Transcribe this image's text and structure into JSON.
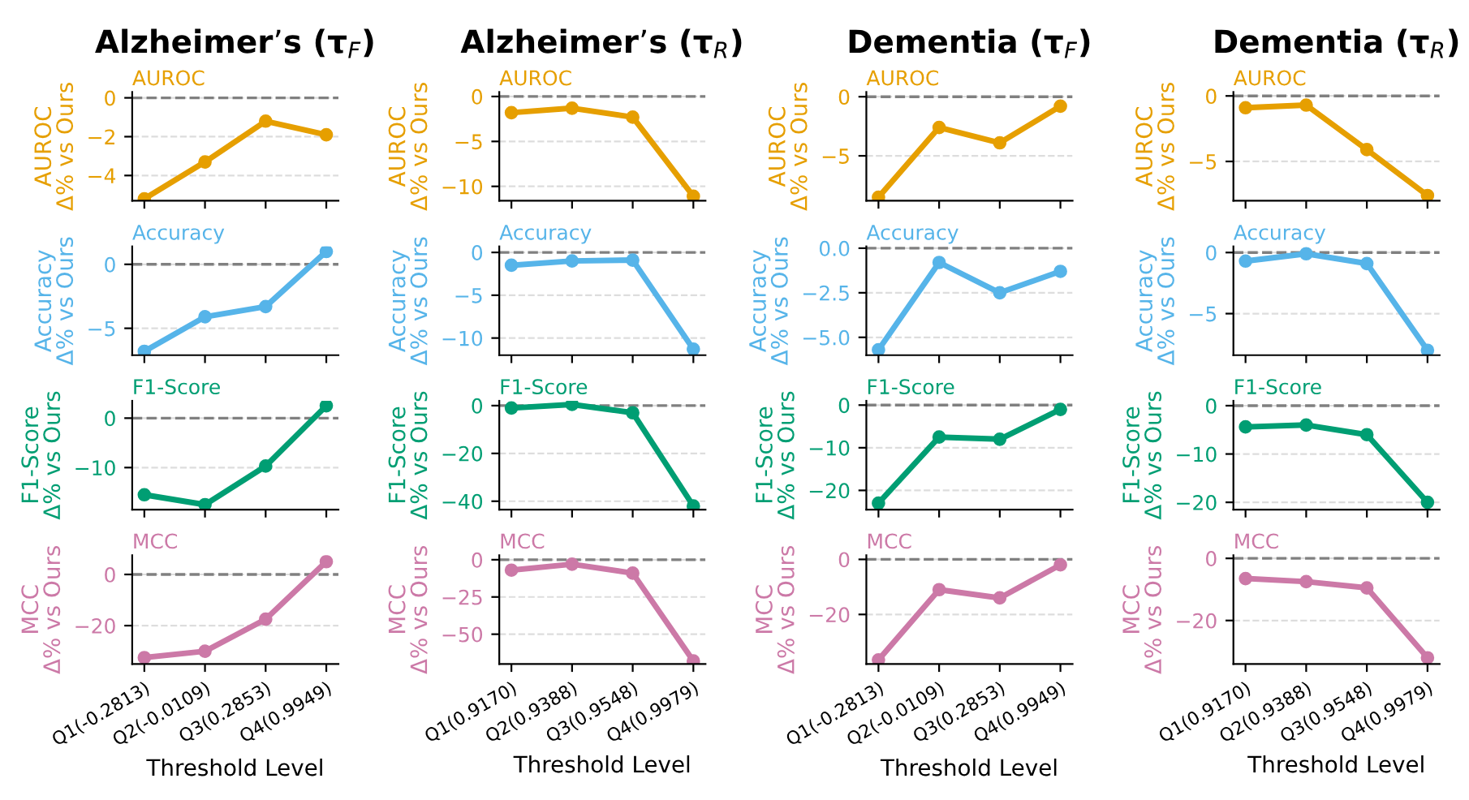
{
  "chart_data": [
    {
      "type": "line",
      "title": "Alzheimer’s (τ$_{F}$)",
      "subtitle": "AUROC",
      "ylabel": "AUROC\nΔ% vs Ours",
      "categories": [
        null,
        null,
        null,
        null
      ],
      "series": [
        {
          "color": "#e69f00",
          "values": [
            -5.2,
            -3.3,
            -1.2,
            -1.9
          ]
        }
      ],
      "ylim": [
        -5.3,
        0.3
      ],
      "yticks": [
        {
          "value": -4,
          "label": "−4"
        },
        {
          "value": -2,
          "label": "−2"
        },
        0
      ],
      "ref_lines": [
        {
          "axis": "y",
          "value": 0,
          "color": "#808080",
          "line_style": "dashed"
        }
      ],
      "grid": "y",
      "marker": "circle",
      "line_style": "solid"
    },
    {
      "type": "line",
      "title": "Alzheimer’s (τ$_{R}$)",
      "subtitle": "AUROC",
      "ylabel": "AUROC\nΔ% vs Ours",
      "categories": [
        null,
        null,
        null,
        null
      ],
      "series": [
        {
          "color": "#e69f00",
          "values": [
            -1.8,
            -1.3,
            -2.3,
            -11.1
          ]
        }
      ],
      "ylim": [
        -11.6,
        0.5
      ],
      "yticks": [
        {
          "value": -10,
          "label": "−10"
        },
        {
          "value": -5,
          "label": "−5"
        },
        0
      ],
      "ref_lines": [
        {
          "axis": "y",
          "value": 0,
          "color": "#808080",
          "line_style": "dashed"
        }
      ],
      "grid": "y",
      "marker": "circle",
      "line_style": "solid"
    },
    {
      "type": "line",
      "title": "Dementia (τ$_{F}$)",
      "subtitle": "AUROC",
      "ylabel": "AUROC\nΔ% vs Ours",
      "categories": [
        null,
        null,
        null,
        null
      ],
      "series": [
        {
          "color": "#e69f00",
          "values": [
            -8.5,
            -2.6,
            -3.9,
            -0.8
          ]
        }
      ],
      "ylim": [
        -8.8,
        0.4
      ],
      "yticks": [
        {
          "value": -5,
          "label": "−5"
        },
        0
      ],
      "ref_lines": [
        {
          "axis": "y",
          "value": 0,
          "color": "#808080",
          "line_style": "dashed"
        }
      ],
      "grid": "y",
      "marker": "circle",
      "line_style": "solid"
    },
    {
      "type": "line",
      "title": "Dementia (τ$_{R}$)",
      "subtitle": "AUROC",
      "ylabel": "AUROC\nΔ% vs Ours",
      "categories": [
        null,
        null,
        null,
        null
      ],
      "series": [
        {
          "color": "#e69f00",
          "values": [
            -0.9,
            -0.7,
            -4.1,
            -7.6
          ]
        }
      ],
      "ylim": [
        -8.0,
        0.3
      ],
      "yticks": [
        {
          "value": -5,
          "label": "−5"
        },
        0
      ],
      "ref_lines": [
        {
          "axis": "y",
          "value": 0,
          "color": "#808080",
          "line_style": "dashed"
        }
      ],
      "grid": "y",
      "marker": "circle",
      "line_style": "solid"
    },
    {
      "type": "line",
      "subtitle": "Accuracy",
      "ylabel": "Accuracy\nΔ% vs Ours",
      "categories": [
        null,
        null,
        null,
        null
      ],
      "series": [
        {
          "color": "#56b4e9",
          "values": [
            -6.8,
            -4.1,
            -3.3,
            1.0
          ]
        }
      ],
      "ylim": [
        -7.1,
        1.4
      ],
      "yticks": [
        {
          "value": -5,
          "label": "−5"
        },
        0
      ],
      "ref_lines": [
        {
          "axis": "y",
          "value": 0,
          "color": "#808080",
          "line_style": "dashed"
        }
      ],
      "grid": "y",
      "marker": "circle",
      "line_style": "solid"
    },
    {
      "type": "line",
      "subtitle": "Accuracy",
      "ylabel": "Accuracy\nΔ% vs Ours",
      "categories": [
        null,
        null,
        null,
        null
      ],
      "series": [
        {
          "color": "#56b4e9",
          "values": [
            -1.5,
            -1.0,
            -0.9,
            -11.3
          ]
        }
      ],
      "ylim": [
        -12.0,
        0.7
      ],
      "yticks": [
        {
          "value": -10,
          "label": "−10"
        },
        {
          "value": -5,
          "label": "−5"
        },
        0
      ],
      "ref_lines": [
        {
          "axis": "y",
          "value": 0,
          "color": "#808080",
          "line_style": "dashed"
        }
      ],
      "grid": "y",
      "marker": "circle",
      "line_style": "solid"
    },
    {
      "type": "line",
      "subtitle": "Accuracy",
      "ylabel": "Accuracy\nΔ% vs Ours",
      "categories": [
        null,
        null,
        null,
        null
      ],
      "series": [
        {
          "color": "#56b4e9",
          "values": [
            -5.7,
            -0.8,
            -2.5,
            -1.3
          ]
        }
      ],
      "ylim": [
        -6.0,
        0.1
      ],
      "yticks": [
        {
          "value": -5,
          "label": "−5.0"
        },
        {
          "value": -2.5,
          "label": "−2.5"
        },
        {
          "value": 0,
          "label": "0.0"
        }
      ],
      "ref_lines": [
        {
          "axis": "y",
          "value": 0,
          "color": "#808080",
          "line_style": "dashed"
        }
      ],
      "grid": "y",
      "marker": "circle",
      "line_style": "solid"
    },
    {
      "type": "line",
      "subtitle": "Accuracy",
      "ylabel": "Accuracy\nΔ% vs Ours",
      "categories": [
        null,
        null,
        null,
        null
      ],
      "series": [
        {
          "color": "#56b4e9",
          "values": [
            -0.7,
            -0.1,
            -0.9,
            -8.0
          ]
        }
      ],
      "ylim": [
        -8.4,
        0.5
      ],
      "yticks": [
        {
          "value": -5,
          "label": "−5"
        },
        0
      ],
      "ref_lines": [
        {
          "axis": "y",
          "value": 0,
          "color": "#808080",
          "line_style": "dashed"
        }
      ],
      "grid": "y",
      "marker": "circle",
      "line_style": "solid"
    },
    {
      "type": "line",
      "subtitle": "F1-Score",
      "ylabel": "F1-Score\nΔ% vs Ours",
      "categories": [
        null,
        null,
        null,
        null
      ],
      "series": [
        {
          "color": "#009e73",
          "values": [
            -15.5,
            -17.5,
            -9.7,
            2.5
          ]
        }
      ],
      "ylim": [
        -18.5,
        3.5
      ],
      "yticks": [
        {
          "value": -10,
          "label": "−10"
        },
        0
      ],
      "ref_lines": [
        {
          "axis": "y",
          "value": 0,
          "color": "#808080",
          "line_style": "dashed"
        }
      ],
      "grid": "y",
      "marker": "circle",
      "line_style": "solid"
    },
    {
      "type": "line",
      "subtitle": "F1-Score",
      "ylabel": "F1-Score\nΔ% vs Ours",
      "categories": [
        null,
        null,
        null,
        null
      ],
      "series": [
        {
          "color": "#009e73",
          "values": [
            -1.0,
            0.5,
            -3.0,
            -42.0
          ]
        }
      ],
      "ylim": [
        -43.5,
        2.0
      ],
      "yticks": [
        {
          "value": -40,
          "label": "−40"
        },
        {
          "value": -20,
          "label": "−20"
        },
        0
      ],
      "ref_lines": [
        {
          "axis": "y",
          "value": 0,
          "color": "#808080",
          "line_style": "dashed"
        }
      ],
      "grid": "y",
      "marker": "circle",
      "line_style": "solid"
    },
    {
      "type": "line",
      "subtitle": "F1-Score",
      "ylabel": "F1-Score\nΔ% vs Ours",
      "categories": [
        null,
        null,
        null,
        null
      ],
      "series": [
        {
          "color": "#009e73",
          "values": [
            -23.0,
            -7.5,
            -8.0,
            -1.0
          ]
        }
      ],
      "ylim": [
        -24.5,
        1.0
      ],
      "yticks": [
        {
          "value": -20,
          "label": "−20"
        },
        {
          "value": -10,
          "label": "−10"
        },
        0
      ],
      "ref_lines": [
        {
          "axis": "y",
          "value": 0,
          "color": "#808080",
          "line_style": "dashed"
        }
      ],
      "grid": "y",
      "marker": "circle",
      "line_style": "solid"
    },
    {
      "type": "line",
      "subtitle": "F1-Score",
      "ylabel": "F1-Score\nΔ% vs Ours",
      "categories": [
        null,
        null,
        null,
        null
      ],
      "series": [
        {
          "color": "#009e73",
          "values": [
            -4.4,
            -4.0,
            -6.0,
            -20.0
          ]
        }
      ],
      "ylim": [
        -21.5,
        1.0
      ],
      "yticks": [
        {
          "value": -20,
          "label": "−20"
        },
        {
          "value": -10,
          "label": "−10"
        },
        0
      ],
      "ref_lines": [
        {
          "axis": "y",
          "value": 0,
          "color": "#808080",
          "line_style": "dashed"
        }
      ],
      "grid": "y",
      "marker": "circle",
      "line_style": "solid"
    },
    {
      "type": "line",
      "subtitle": "MCC",
      "xlabel": "Threshold Level",
      "ylabel": "MCC\nΔ% vs Ours",
      "categories": [
        "Q1(-0.2813)",
        "Q2(-0.0109)",
        "Q3(0.2853)",
        "Q4(0.9949)"
      ],
      "series": [
        {
          "color": "#cc79a7",
          "values": [
            -32.5,
            -30.0,
            -17.5,
            5.0
          ]
        }
      ],
      "ylim": [
        -35.0,
        7.5
      ],
      "yticks": [
        {
          "value": -20,
          "label": "−20"
        },
        0
      ],
      "ref_lines": [
        {
          "axis": "y",
          "value": 0,
          "color": "#808080",
          "line_style": "dashed"
        }
      ],
      "grid": "y",
      "marker": "circle",
      "line_style": "solid"
    },
    {
      "type": "line",
      "subtitle": "MCC",
      "xlabel": "Threshold Level",
      "ylabel": "MCC\nΔ% vs Ours",
      "categories": [
        "Q1(0.9170)",
        "Q2(0.9388)",
        "Q3(0.9548)",
        "Q4(0.9979)"
      ],
      "series": [
        {
          "color": "#cc79a7",
          "values": [
            -7.0,
            -3.0,
            -9.0,
            -68.0
          ]
        }
      ],
      "ylim": [
        -70.0,
        3.0
      ],
      "yticks": [
        {
          "value": -50,
          "label": "−50"
        },
        {
          "value": -25,
          "label": "−25"
        },
        0
      ],
      "ref_lines": [
        {
          "axis": "y",
          "value": 0,
          "color": "#808080",
          "line_style": "dashed"
        }
      ],
      "grid": "y",
      "marker": "circle",
      "line_style": "solid"
    },
    {
      "type": "line",
      "subtitle": "MCC",
      "xlabel": "Threshold Level",
      "ylabel": "MCC\nΔ% vs Ours",
      "categories": [
        "Q1(-0.2813)",
        "Q2(-0.0109)",
        "Q3(0.2853)",
        "Q4(0.9949)"
      ],
      "series": [
        {
          "color": "#cc79a7",
          "values": [
            -36.5,
            -11.0,
            -14.0,
            -2.0
          ]
        }
      ],
      "ylim": [
        -38.0,
        1.5
      ],
      "yticks": [
        {
          "value": -20,
          "label": "−20"
        },
        0
      ],
      "ref_lines": [
        {
          "axis": "y",
          "value": 0,
          "color": "#808080",
          "line_style": "dashed"
        }
      ],
      "grid": "y",
      "marker": "circle",
      "line_style": "solid"
    },
    {
      "type": "line",
      "subtitle": "MCC",
      "xlabel": "Threshold Level",
      "ylabel": "MCC\nΔ% vs Ours",
      "categories": [
        "Q1(0.9170)",
        "Q2(0.9388)",
        "Q3(0.9548)",
        "Q4(0.9979)"
      ],
      "series": [
        {
          "color": "#cc79a7",
          "values": [
            -6.5,
            -7.5,
            -9.5,
            -32.0
          ]
        }
      ],
      "ylim": [
        -34.0,
        1.0
      ],
      "yticks": [
        {
          "value": -20,
          "label": "−20"
        },
        0
      ],
      "ref_lines": [
        {
          "axis": "y",
          "value": 0,
          "color": "#808080",
          "line_style": "dashed"
        }
      ],
      "grid": "y",
      "marker": "circle",
      "line_style": "solid"
    }
  ]
}
